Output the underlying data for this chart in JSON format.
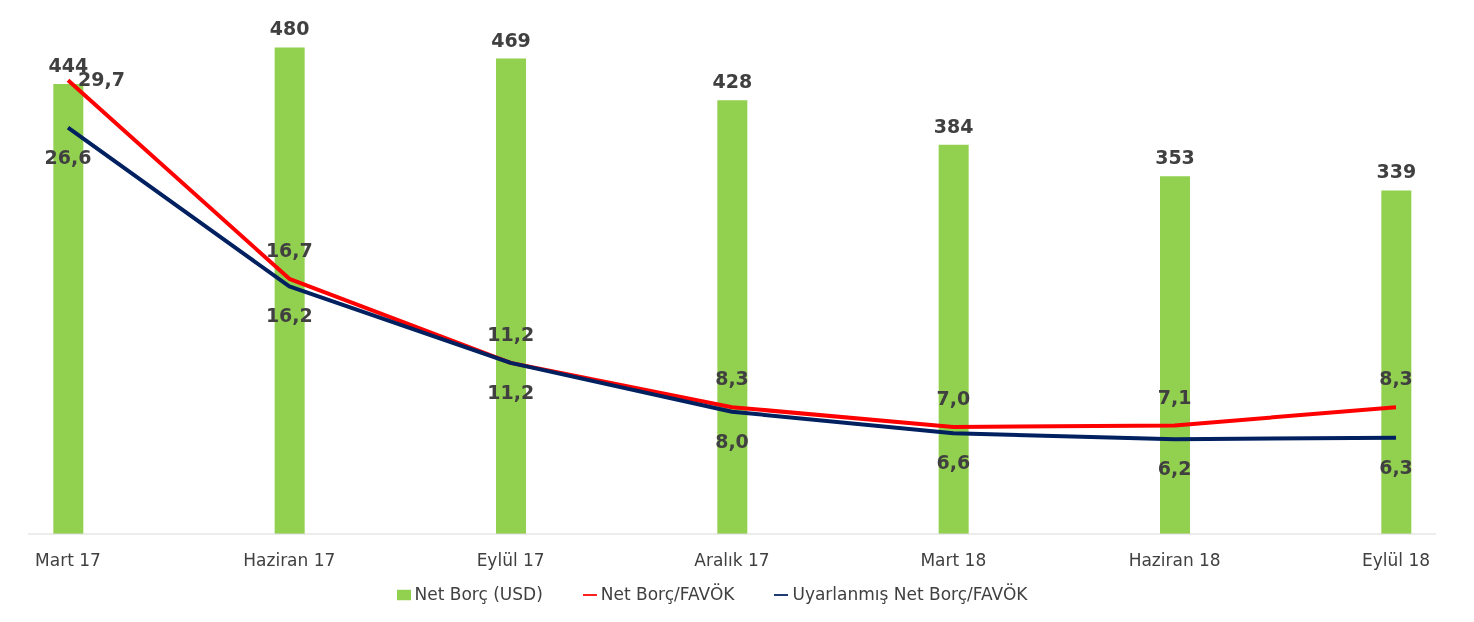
{
  "chart_data": {
    "type": "bar",
    "categories": [
      "Mart 17",
      "Haziran 17",
      "Eylül 17",
      "Aralık 17",
      "Mart 18",
      "Haziran 18",
      "Eylül 18"
    ],
    "series": [
      {
        "name": "Net Borç (USD)",
        "color": "#92d050",
        "values": [
          444,
          480,
          469,
          428,
          384,
          353,
          339
        ],
        "value_labels": [
          "444",
          "480",
          "469",
          "428",
          "384",
          "353",
          "339"
        ]
      },
      {
        "name": "Net Borç/FAVÖK",
        "type": "line",
        "axis": "y2",
        "color": "#ff0000",
        "values": [
          29.7,
          16.7,
          11.2,
          8.3,
          7.0,
          7.1,
          8.3
        ],
        "value_labels": [
          "29,7",
          "16,7",
          "11,2",
          "8,3",
          "7,0",
          "7,1",
          "8,3"
        ]
      },
      {
        "name": "Uyarlanmış Net Borç/FAVÖK",
        "type": "line",
        "axis": "y2",
        "color": "#002060",
        "values": [
          26.6,
          16.2,
          11.2,
          8.0,
          6.6,
          6.2,
          6.3
        ],
        "value_labels": [
          "26,6",
          "16,2",
          "11,2",
          "8,0",
          "6,6",
          "6,2",
          "6,3"
        ]
      }
    ],
    "legend": "bottom",
    "tick_labels": "x",
    "grid": false
  }
}
